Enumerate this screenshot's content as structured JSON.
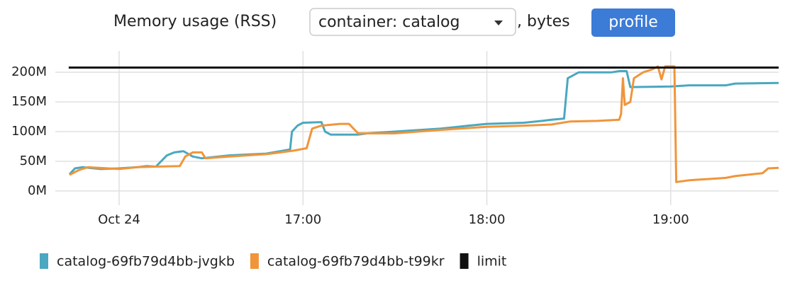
{
  "chart_data": {
    "type": "line",
    "title": "Memory usage (RSS)",
    "selector": "container: catalog",
    "unit_label": ", bytes",
    "button": "profile",
    "xlim": [
      15.653,
      19.587
    ],
    "ylim": [
      -24,
      236
    ],
    "xticks": [
      {
        "value": 16,
        "label": "Oct 24"
      },
      {
        "value": 17,
        "label": "17:00"
      },
      {
        "value": 18,
        "label": "18:00"
      },
      {
        "value": 19,
        "label": "19:00"
      }
    ],
    "yticks": [
      {
        "value": 0,
        "label": "0M"
      },
      {
        "value": 50,
        "label": "50M"
      },
      {
        "value": 100,
        "label": "100M"
      },
      {
        "value": 150,
        "label": "150M"
      },
      {
        "value": 200,
        "label": "200M"
      }
    ],
    "grid": true,
    "legend": "bottom-left",
    "series": [
      {
        "name": "catalog-69fb79d4bb-jvgkb",
        "color": "#4aa8c0",
        "x": [
          15.73,
          15.76,
          15.8,
          15.9,
          16.0,
          16.1,
          16.15,
          16.2,
          16.26,
          16.3,
          16.35,
          16.4,
          16.45,
          16.6,
          16.8,
          16.93,
          16.94,
          16.97,
          17.0,
          17.1,
          17.12,
          17.15,
          17.3,
          17.35,
          17.5,
          17.75,
          17.9,
          18.0,
          18.2,
          18.3,
          18.35,
          18.42,
          18.44,
          18.5,
          18.68,
          18.72,
          18.76,
          18.78,
          19.0,
          19.1,
          19.3,
          19.35,
          19.587
        ],
        "values": [
          28,
          38,
          40,
          37,
          38,
          40,
          42,
          41,
          60,
          65,
          67,
          58,
          55,
          60,
          63,
          70,
          100,
          110,
          115,
          116,
          100,
          95,
          95,
          97,
          100,
          105,
          110,
          113,
          115,
          118,
          120,
          122,
          190,
          200,
          200,
          202,
          202,
          175,
          176,
          178,
          178,
          181,
          182
        ]
      },
      {
        "name": "catalog-69fb79d4bb-t99kr",
        "color": "#f0953a",
        "x": [
          15.73,
          15.78,
          15.83,
          16.0,
          16.1,
          16.2,
          16.33,
          16.36,
          16.4,
          16.45,
          16.47,
          16.6,
          16.8,
          16.95,
          17.02,
          17.05,
          17.1,
          17.2,
          17.25,
          17.3,
          17.5,
          17.75,
          18.0,
          18.2,
          18.35,
          18.45,
          18.6,
          18.72,
          18.73,
          18.74,
          18.75,
          18.78,
          18.8,
          18.85,
          18.9,
          18.93,
          18.95,
          18.97,
          19.02,
          19.03,
          19.1,
          19.2,
          19.3,
          19.35,
          19.5,
          19.53,
          19.587
        ],
        "values": [
          27,
          35,
          40,
          37,
          40,
          41,
          42,
          58,
          65,
          65,
          55,
          58,
          62,
          68,
          72,
          105,
          110,
          113,
          113,
          97,
          97,
          103,
          108,
          110,
          112,
          117,
          118,
          120,
          130,
          190,
          145,
          150,
          190,
          200,
          205,
          210,
          188,
          210,
          210,
          15,
          18,
          20,
          22,
          25,
          30,
          38,
          39
        ]
      },
      {
        "name": "limit",
        "color": "#111111",
        "x": [
          15.726,
          19.587
        ],
        "values": [
          208,
          208
        ]
      }
    ]
  }
}
